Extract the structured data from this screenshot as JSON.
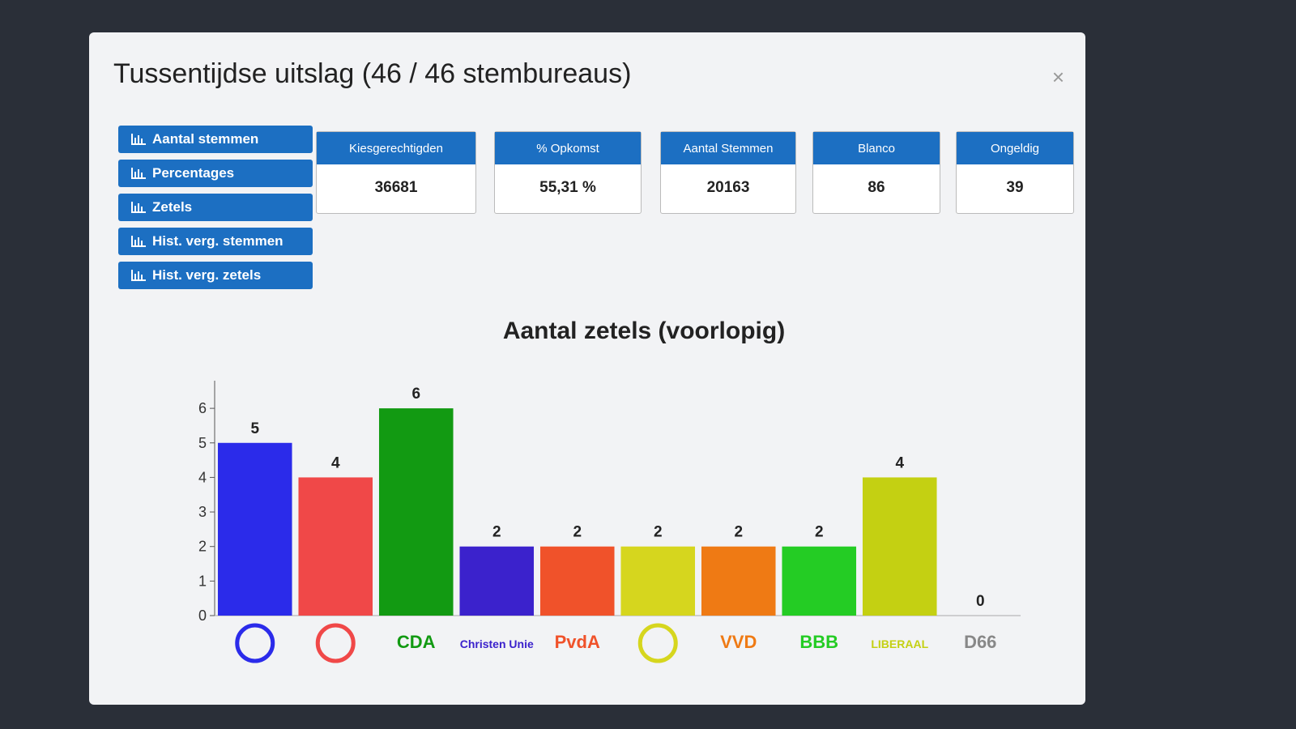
{
  "modal": {
    "title": "Tussentijdse uitslag (46 / 46 stembureaus)",
    "close": "×",
    "buttons": [
      "Aantal stemmen",
      "Percentages",
      "Zetels",
      "Hist. verg. stemmen",
      "Hist. verg. zetels"
    ],
    "stats": [
      {
        "label": "Kiesgerechtigden",
        "value": "36681"
      },
      {
        "label": "% Opkomst",
        "value": "55,31 %"
      },
      {
        "label": "Aantal Stemmen",
        "value": "20163"
      },
      {
        "label": "Blanco",
        "value": "86"
      },
      {
        "label": "Ongeldig",
        "value": "39"
      }
    ]
  },
  "chart_data": {
    "type": "bar",
    "title": "Aantal zetels (voorlopig)",
    "categories": [
      null,
      null,
      "CDA",
      "Christen Unie",
      "PvdA",
      null,
      "VVD",
      "BBB",
      "LIBERAAL",
      "D66"
    ],
    "values": [
      5,
      4,
      6,
      2,
      2,
      2,
      2,
      2,
      4,
      0
    ],
    "colors": [
      "#2b2bea",
      "#f04848",
      "#129a12",
      "#3b22cc",
      "#f0522a",
      "#d6d61e",
      "#ef7a14",
      "#24cc24",
      "#c4d012",
      "#888888"
    ],
    "ylim": [
      0,
      6.8
    ],
    "yticks": [
      0,
      1,
      2,
      3,
      4,
      5,
      6
    ]
  }
}
